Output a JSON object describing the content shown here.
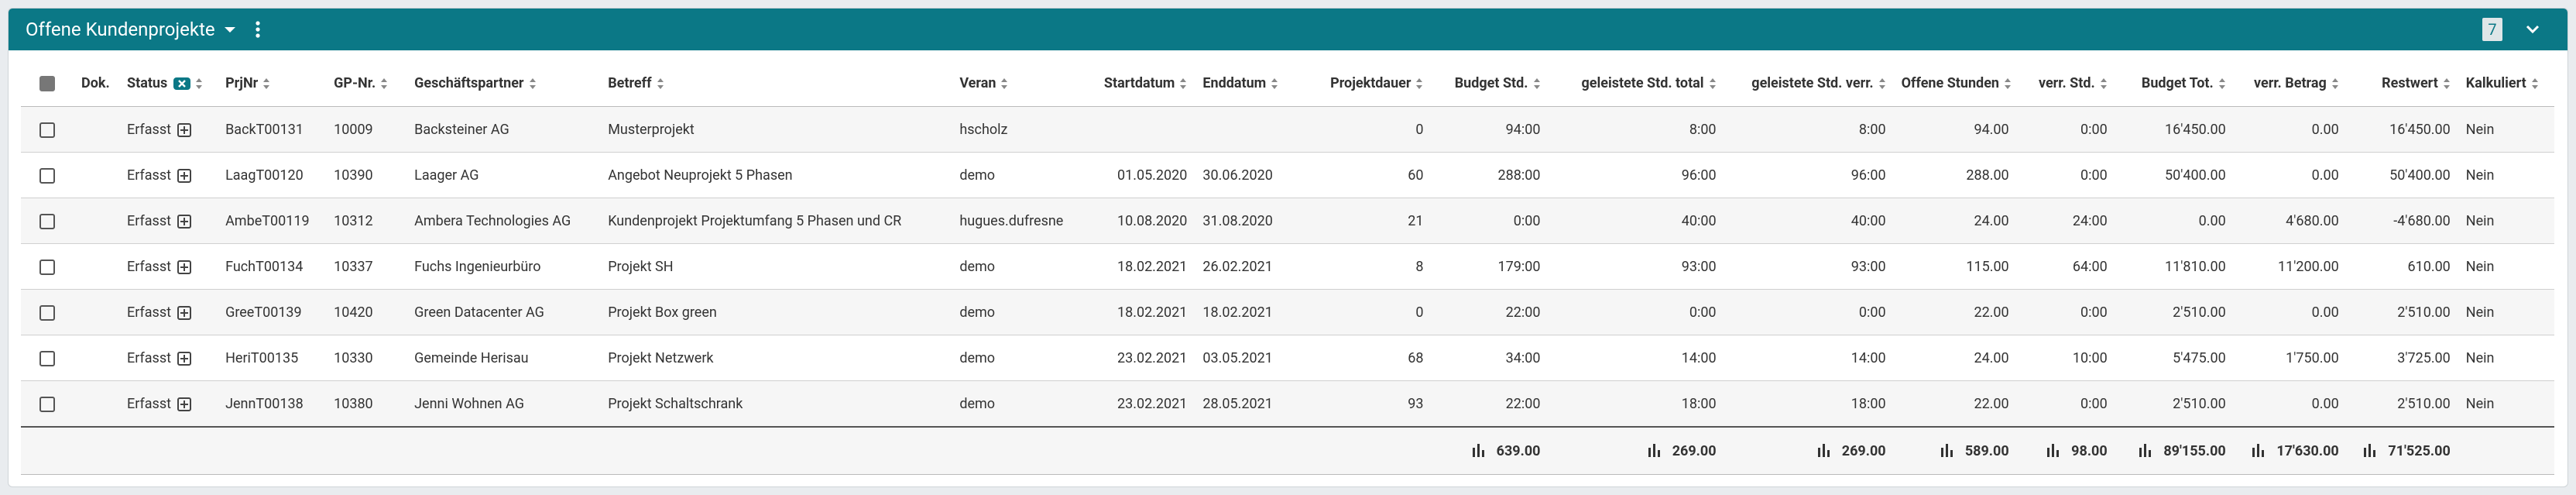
{
  "header": {
    "title": "Offene Kundenprojekte",
    "count": "7"
  },
  "table": {
    "columns": [
      "Dok.",
      "Status",
      "PrjNr",
      "GP-Nr.",
      "Geschäftspartner",
      "Betreff",
      "Veran",
      "Startdatum",
      "Enddatum",
      "Projektdauer",
      "Budget Std.",
      "geleistete Std. total",
      "geleistete Std. verr.",
      "Offene Stunden",
      "verr. Std.",
      "Budget Tot.",
      "verr. Betrag",
      "Restwert",
      "Kalkuliert"
    ],
    "rows": [
      [
        null,
        "Erfasst",
        "BackT00131",
        "10009",
        "Backsteiner AG",
        "Musterprojekt",
        "hscholz",
        null,
        null,
        "0",
        "94:00",
        "8:00",
        "8:00",
        "94.00",
        "0:00",
        "16'450.00",
        "0.00",
        "16'450.00",
        "Nein"
      ],
      [
        null,
        "Erfasst",
        "LaagT00120",
        "10390",
        "Laager AG",
        "Angebot Neuprojekt 5 Phasen",
        "demo",
        "01.05.2020",
        "30.06.2020",
        "60",
        "288:00",
        "96:00",
        "96:00",
        "288.00",
        "0:00",
        "50'400.00",
        "0.00",
        "50'400.00",
        "Nein"
      ],
      [
        null,
        "Erfasst",
        "AmbeT00119",
        "10312",
        "Ambera Technologies AG",
        "Kundenprojekt Projektumfang 5 Phasen und CR",
        "hugues.dufresne",
        "10.08.2020",
        "31.08.2020",
        "21",
        "0:00",
        "40:00",
        "40:00",
        "24.00",
        "24:00",
        "0.00",
        "4'680.00",
        "-4'680.00",
        "Nein"
      ],
      [
        null,
        "Erfasst",
        "FuchT00134",
        "10337",
        "Fuchs Ingenieurbüro",
        "Projekt SH",
        "demo",
        "18.02.2021",
        "26.02.2021",
        "8",
        "179:00",
        "93:00",
        "93:00",
        "115.00",
        "64:00",
        "11'810.00",
        "11'200.00",
        "610.00",
        "Nein"
      ],
      [
        null,
        "Erfasst",
        "GreeT00139",
        "10420",
        "Green Datacenter AG",
        "Projekt Box green",
        "demo",
        "18.02.2021",
        "18.02.2021",
        "0",
        "22:00",
        "0:00",
        "0:00",
        "22.00",
        "0:00",
        "2'510.00",
        "0.00",
        "2'510.00",
        "Nein"
      ],
      [
        null,
        "Erfasst",
        "HeriT00135",
        "10330",
        "Gemeinde Herisau",
        "Projekt Netzwerk",
        "demo",
        "23.02.2021",
        "03.05.2021",
        "68",
        "34:00",
        "14:00",
        "14:00",
        "24.00",
        "10:00",
        "5'475.00",
        "1'750.00",
        "3'725.00",
        "Nein"
      ],
      [
        null,
        "Erfasst",
        "JennT00138",
        "10380",
        "Jenni Wohnen AG",
        "Projekt Schaltschrank",
        "demo",
        "23.02.2021",
        "28.05.2021",
        "93",
        "22:00",
        "18:00",
        "18:00",
        "22.00",
        "0:00",
        "2'510.00",
        "0.00",
        "2'510.00",
        "Nein"
      ]
    ],
    "totals": [
      null,
      null,
      null,
      null,
      null,
      null,
      null,
      null,
      null,
      null,
      "639.00",
      "269.00",
      "269.00",
      "589.00",
      "98.00",
      "89'155.00",
      "17'630.00",
      "71'525.00",
      null
    ]
  }
}
